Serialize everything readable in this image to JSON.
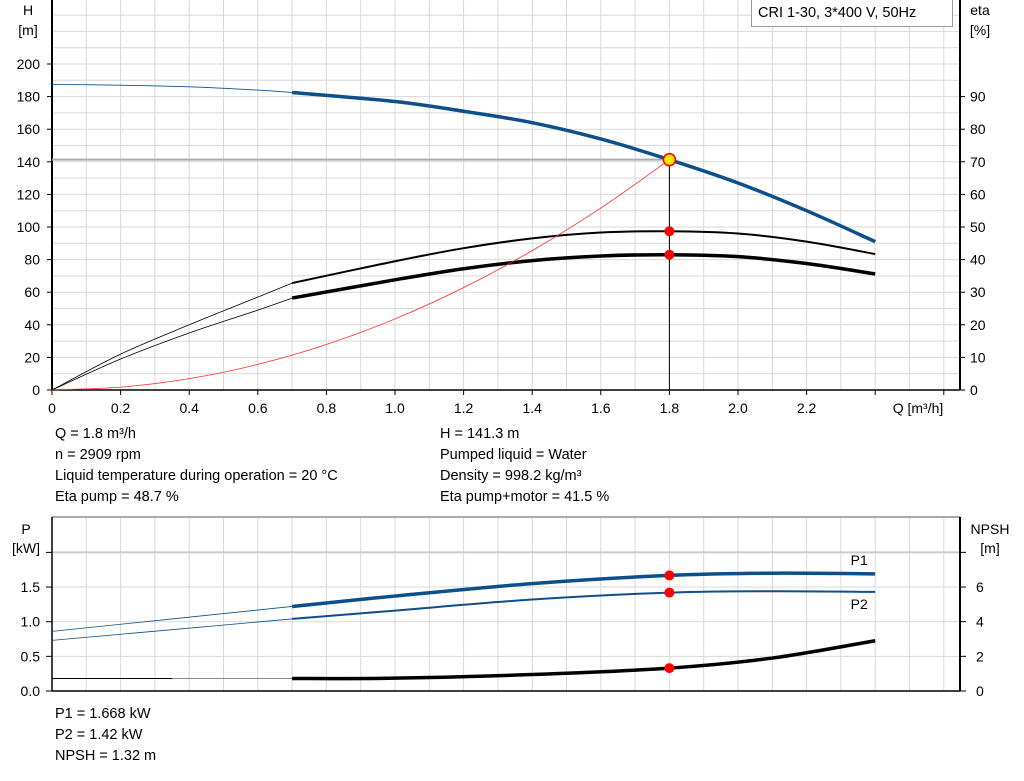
{
  "legend_title": "CRI 1-30, 3*400 V, 50Hz",
  "colors": {
    "head": "#0d4f8b",
    "efficiency": "#000000",
    "power": "#0d4f8b",
    "npsh": "#000000",
    "system_curve": "#ff2a2a",
    "marker": "#ff0000",
    "grid": "#d9d9d9"
  },
  "chart_data": [
    {
      "type": "line",
      "xlabel": "Q [m³/h]",
      "ylabel": "H\n[m]",
      "ylabel_right": "eta\n[%]",
      "xlim": [
        0,
        2.6
      ],
      "ylim": [
        0,
        230
      ],
      "ylim_right": [
        0,
        115
      ],
      "x_ticks": [
        "0",
        "0.2",
        "0.4",
        "0.6",
        "0.8",
        "1.0",
        "1.2",
        "1.4",
        "1.6",
        "1.8",
        "2.0",
        "2.2"
      ],
      "y_ticks": [
        "0",
        "20",
        "40",
        "60",
        "80",
        "100",
        "120",
        "140",
        "160",
        "180",
        "200"
      ],
      "y_ticks_right": [
        "0",
        "10",
        "20",
        "30",
        "40",
        "50",
        "60",
        "70",
        "80",
        "90"
      ],
      "grid": true,
      "series": [
        {
          "key": "head",
          "axis": "left",
          "x": [
            0,
            0.2,
            0.4,
            0.6,
            0.7,
            1.0,
            1.2,
            1.4,
            1.6,
            1.8,
            2.0,
            2.2,
            2.4
          ],
          "y": [
            187.5,
            187,
            186,
            184,
            182.5,
            177,
            171,
            164,
            154,
            141.3,
            127,
            110,
            91
          ]
        },
        {
          "key": "eta_pump",
          "axis": "right",
          "x": [
            0,
            0.2,
            0.4,
            0.6,
            0.7,
            1.0,
            1.2,
            1.4,
            1.6,
            1.8,
            2.0,
            2.2,
            2.4
          ],
          "y": [
            0,
            11,
            20,
            28.5,
            32.8,
            39.5,
            43.5,
            46.5,
            48.3,
            48.7,
            48,
            45.5,
            41.7
          ]
        },
        {
          "key": "eta_pump_motor",
          "axis": "right",
          "x": [
            0,
            0.2,
            0.4,
            0.6,
            0.7,
            1.0,
            1.2,
            1.4,
            1.6,
            1.8,
            2.0,
            2.2,
            2.4
          ],
          "y": [
            0,
            9.5,
            17.5,
            24.5,
            28.2,
            33.8,
            37.2,
            39.7,
            41.1,
            41.5,
            40.9,
            38.8,
            35.6
          ]
        },
        {
          "key": "system_curve",
          "axis": "left",
          "x": [
            0,
            0.2,
            0.4,
            0.6,
            0.8,
            1.0,
            1.2,
            1.4,
            1.6,
            1.8
          ],
          "y": [
            0,
            1.74,
            6.98,
            15.7,
            27.9,
            43.6,
            62.8,
            85.5,
            111.6,
            141.3
          ]
        }
      ],
      "duty_point": {
        "q": 1.8,
        "h": 141.3,
        "eta_pump": 48.7,
        "eta_pump_motor": 41.5
      }
    },
    {
      "type": "line",
      "xlabel": "",
      "ylabel": "P\n[kW]",
      "ylabel_right": "NPSH\n[m]",
      "xlim": [
        0,
        2.6
      ],
      "ylim": [
        0,
        2.5
      ],
      "ylim_right": [
        0,
        10
      ],
      "y_ticks": [
        "0.0",
        "0.5",
        "1.0",
        "1.5"
      ],
      "y_ticks_right": [
        "0",
        "2",
        "4",
        "6"
      ],
      "grid": true,
      "series": [
        {
          "key": "p1",
          "name": "P1",
          "axis": "left",
          "x": [
            0,
            0.7,
            1.0,
            1.4,
            1.8,
            2.1,
            2.4
          ],
          "y": [
            0.86,
            1.22,
            1.37,
            1.55,
            1.668,
            1.7,
            1.69
          ]
        },
        {
          "key": "p2",
          "name": "P2",
          "axis": "left",
          "x": [
            0,
            0.7,
            1.0,
            1.4,
            1.8,
            2.1,
            2.4
          ],
          "y": [
            0.73,
            1.04,
            1.16,
            1.32,
            1.42,
            1.44,
            1.43
          ]
        },
        {
          "key": "npsh",
          "axis": "right",
          "x": [
            0,
            0.35,
            0.7,
            1.0,
            1.4,
            1.8,
            2.1,
            2.4
          ],
          "y": [
            0.72,
            0.72,
            0.72,
            0.74,
            0.95,
            1.32,
            1.9,
            2.9
          ]
        }
      ],
      "duty_point": {
        "q": 1.8,
        "p1": 1.668,
        "p2": 1.42,
        "npsh": 1.32
      }
    }
  ],
  "info_left": [
    "Q = 1.8 m³/h",
    "n = 2909 rpm",
    "Liquid temperature during operation = 20 °C",
    "Eta pump = 48.7 %"
  ],
  "info_right": [
    "H = 141.3 m",
    "Pumped liquid = Water",
    "Density = 998.2 kg/m³",
    "Eta pump+motor = 41.5 %"
  ],
  "info_bottom": [
    "P1 = 1.668 kW",
    "P2 = 1.42 kW",
    "NPSH = 1.32 m"
  ]
}
